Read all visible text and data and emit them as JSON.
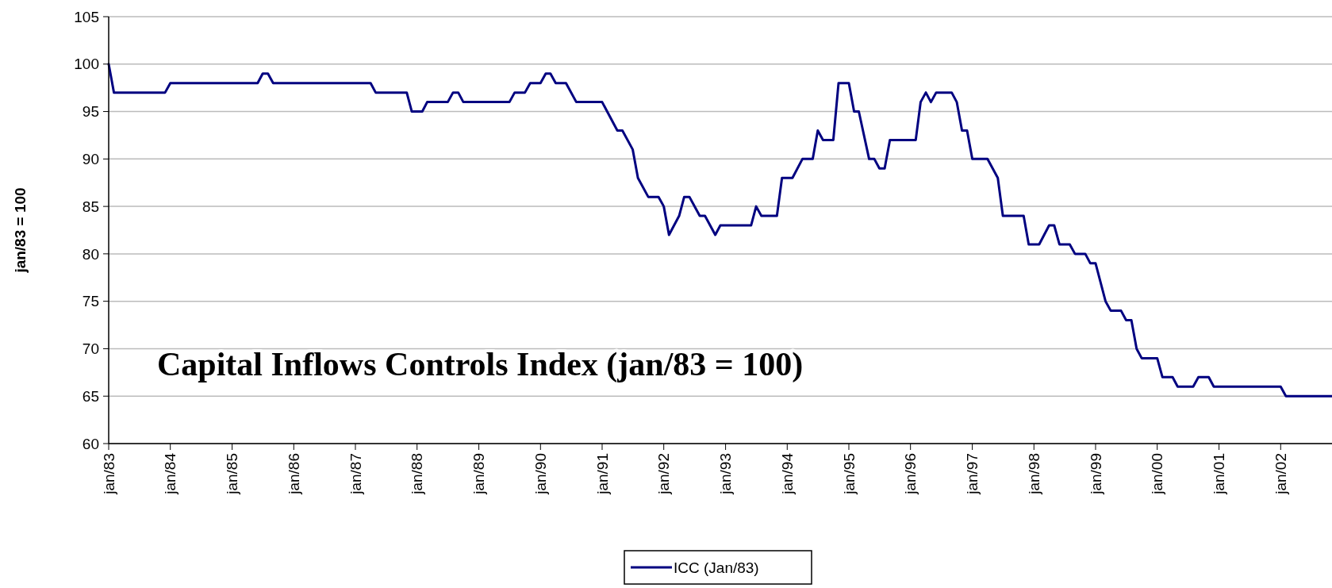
{
  "chart_data": {
    "type": "line",
    "title": "Capital Inflows Controls Index (jan/83 = 100)",
    "ylabel": "jan/83 = 100",
    "x": [
      "1983-01",
      "1983-02",
      "1983-12",
      "1984-01",
      "1985-06",
      "1985-07",
      "1985-08",
      "1985-09",
      "1987-04",
      "1987-05",
      "1987-11",
      "1987-12",
      "1988-02",
      "1988-03",
      "1988-07",
      "1988-08",
      "1988-09",
      "1988-10",
      "1989-07",
      "1989-08",
      "1989-10",
      "1989-11",
      "1990-01",
      "1990-02",
      "1990-03",
      "1990-04",
      "1990-06",
      "1990-08",
      "1991-01",
      "1991-04",
      "1991-05",
      "1991-07",
      "1991-08",
      "1991-10",
      "1991-12",
      "1992-01",
      "1992-02",
      "1992-04",
      "1992-05",
      "1992-06",
      "1992-08",
      "1992-09",
      "1992-11",
      "1992-12",
      "1993-06",
      "1993-07",
      "1993-08",
      "1993-11",
      "1993-12",
      "1994-02",
      "1994-04",
      "1994-06",
      "1994-07",
      "1994-08",
      "1994-10",
      "1994-11",
      "1995-01",
      "1995-02",
      "1995-03",
      "1995-05",
      "1995-06",
      "1995-07",
      "1995-08",
      "1995-09",
      "1996-02",
      "1996-03",
      "1996-04",
      "1996-05",
      "1996-06",
      "1996-09",
      "1996-10",
      "1996-11",
      "1996-12",
      "1997-01",
      "1997-04",
      "1997-06",
      "1997-07",
      "1997-11",
      "1997-12",
      "1998-02",
      "1998-04",
      "1998-05",
      "1998-06",
      "1998-08",
      "1998-09",
      "1998-11",
      "1998-12",
      "1999-01",
      "1999-03",
      "1999-04",
      "1999-06",
      "1999-07",
      "1999-08",
      "1999-09",
      "1999-10",
      "2000-01",
      "2000-02",
      "2000-04",
      "2000-05",
      "2000-08",
      "2000-09",
      "2000-11",
      "2000-12",
      "2002-01",
      "2002-02",
      "2002-11"
    ],
    "series": [
      {
        "name": "ICC (Jan/83)",
        "color": "#000080",
        "values": [
          100,
          97,
          97,
          98,
          98,
          99,
          99,
          98,
          98,
          97,
          97,
          95,
          95,
          96,
          96,
          97,
          97,
          96,
          96,
          97,
          97,
          98,
          98,
          99,
          99,
          98,
          98,
          96,
          96,
          93,
          93,
          91,
          88,
          86,
          86,
          85,
          82,
          84,
          86,
          86,
          84,
          84,
          82,
          83,
          83,
          85,
          84,
          84,
          88,
          88,
          90,
          90,
          93,
          92,
          92,
          98,
          98,
          95,
          95,
          90,
          90,
          89,
          89,
          92,
          92,
          96,
          97,
          96,
          97,
          97,
          96,
          93,
          93,
          90,
          90,
          88,
          84,
          84,
          81,
          81,
          83,
          83,
          81,
          81,
          80,
          80,
          79,
          79,
          75,
          74,
          74,
          73,
          73,
          70,
          69,
          69,
          67,
          67,
          66,
          66,
          67,
          67,
          66,
          66,
          65,
          65
        ]
      }
    ],
    "xlim": [
      "1983-01",
      "2002-11"
    ],
    "xticks": [
      {
        "value": "1983-01",
        "label": "jan/83"
      },
      {
        "value": "1984-01",
        "label": "jan/84"
      },
      {
        "value": "1985-01",
        "label": "jan/85"
      },
      {
        "value": "1986-01",
        "label": "jan/86"
      },
      {
        "value": "1987-01",
        "label": "jan/87"
      },
      {
        "value": "1988-01",
        "label": "jan/88"
      },
      {
        "value": "1989-01",
        "label": "jan/89"
      },
      {
        "value": "1990-01",
        "label": "jan/90"
      },
      {
        "value": "1991-01",
        "label": "jan/91"
      },
      {
        "value": "1992-01",
        "label": "jan/92"
      },
      {
        "value": "1993-01",
        "label": "jan/93"
      },
      {
        "value": "1994-01",
        "label": "jan/94"
      },
      {
        "value": "1995-01",
        "label": "jan/95"
      },
      {
        "value": "1996-01",
        "label": "jan/96"
      },
      {
        "value": "1997-01",
        "label": "jan/97"
      },
      {
        "value": "1998-01",
        "label": "jan/98"
      },
      {
        "value": "1999-01",
        "label": "jan/99"
      },
      {
        "value": "2000-01",
        "label": "jan/00"
      },
      {
        "value": "2001-01",
        "label": "jan/01"
      },
      {
        "value": "2002-01",
        "label": "jan/02"
      }
    ],
    "ylim": [
      60,
      105
    ],
    "yticks": [
      60,
      65,
      70,
      75,
      80,
      85,
      90,
      95,
      100,
      105
    ],
    "grid": "y",
    "legend": "bottom",
    "line_style": "solid",
    "marker": "none"
  }
}
